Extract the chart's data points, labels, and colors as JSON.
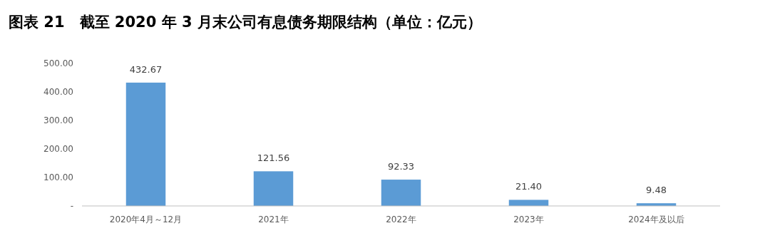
{
  "chart_data": {
    "type": "bar",
    "title": "图表 21　截至 2020 年 3 月末公司有息债务期限结构（单位：亿元）",
    "categories": [
      "2020年4月～12月",
      "2021年",
      "2022年",
      "2023年",
      "2024年及以后"
    ],
    "values": [
      432.67,
      121.56,
      92.33,
      21.4,
      9.48
    ],
    "value_labels": [
      "432.67",
      "121.56",
      "92.33",
      "21.40",
      "9.48"
    ],
    "color": "#5b9bd5",
    "ylim": [
      0,
      500
    ],
    "yticks": [
      {
        "value": 0,
        "label": "-"
      },
      {
        "value": 100,
        "label": "100.00"
      },
      {
        "value": 200,
        "label": "200.00"
      },
      {
        "value": 300,
        "label": "300.00"
      },
      {
        "value": 400,
        "label": "400.00"
      },
      {
        "value": 500,
        "label": "500.00"
      }
    ],
    "grid": false
  }
}
